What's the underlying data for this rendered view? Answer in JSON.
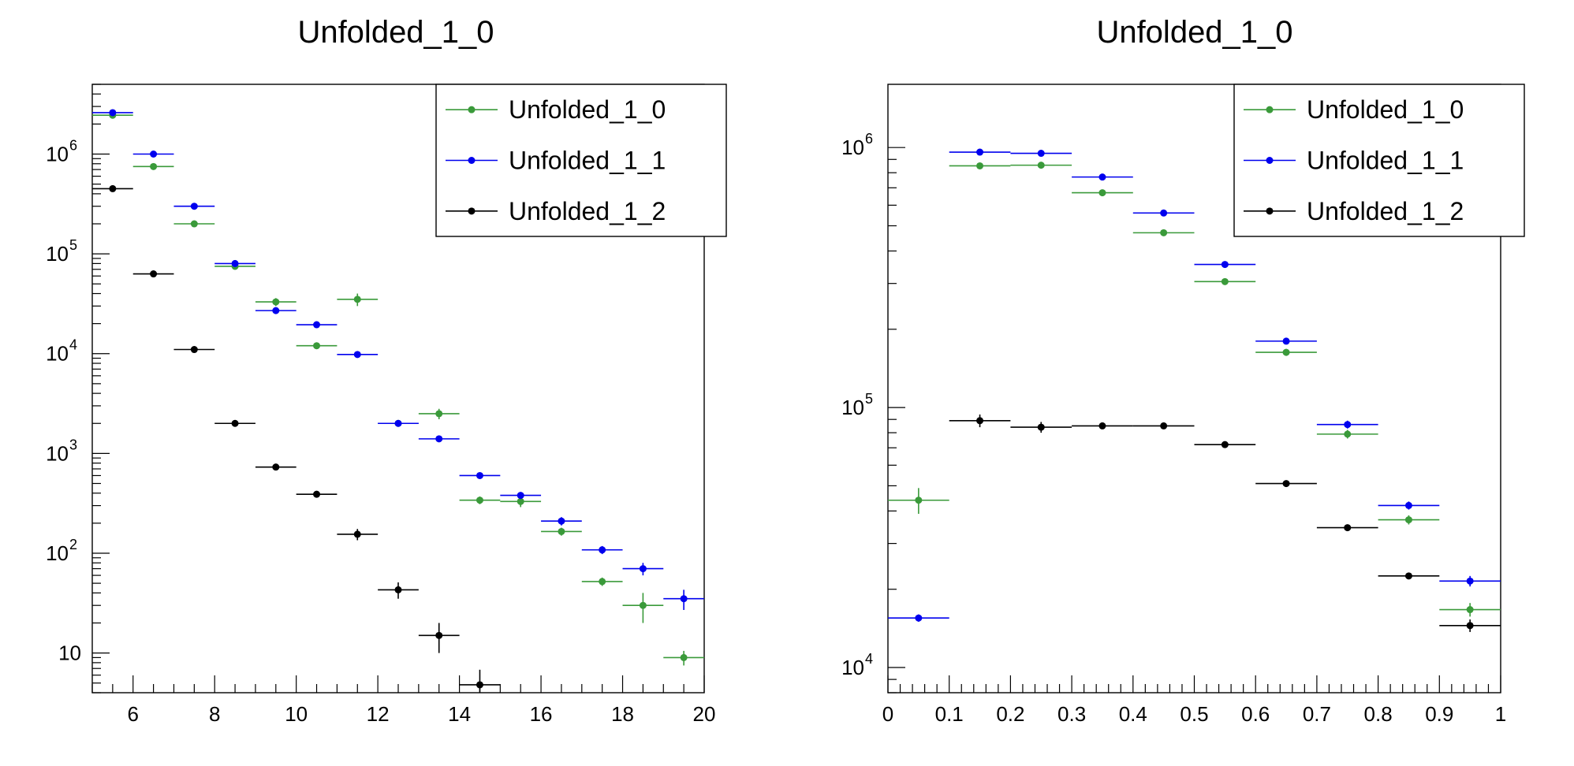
{
  "chart_data": [
    {
      "type": "scatter",
      "title": "Unfolded_1_0",
      "xlabel": "",
      "ylabel": "",
      "xlim": [
        5,
        20
      ],
      "ylim": [
        4,
        5000000
      ],
      "y_scale": "log",
      "grid": false,
      "legend_position": "top-right",
      "x_tick_labels": [
        "6",
        "8",
        "10",
        "12",
        "14",
        "16",
        "18",
        "20"
      ],
      "y_tick_labels": [
        "10",
        "10^2",
        "10^3",
        "10^4",
        "10^5",
        "10^6"
      ],
      "x": [
        5.5,
        6.5,
        7.5,
        8.5,
        9.5,
        10.5,
        11.5,
        12.5,
        13.5,
        14.5,
        15.5,
        16.5,
        17.5,
        18.5,
        19.5
      ],
      "x_bin_width": 1,
      "series": [
        {
          "name": "Unfolded_1_0",
          "color": "#3a9a3a",
          "values": [
            2450000,
            750000,
            200000,
            75000,
            33000,
            12000,
            35000,
            2000,
            2500,
            340,
            330,
            165,
            52,
            30,
            9
          ],
          "errors": [
            150000,
            40000,
            10000,
            4000,
            3000,
            800,
            5000,
            100,
            300,
            30,
            40,
            15,
            5,
            10,
            1.5
          ]
        },
        {
          "name": "Unfolded_1_1",
          "color": "#0000ee",
          "values": [
            2600000,
            1000000,
            300000,
            80000,
            27000,
            19500,
            9800,
            2000,
            1400,
            600,
            380,
            210,
            108,
            70,
            35
          ],
          "errors": [
            120000,
            40000,
            12000,
            3000,
            1500,
            900,
            500,
            100,
            80,
            40,
            30,
            20,
            10,
            10,
            8
          ]
        },
        {
          "name": "Unfolded_1_2",
          "color": "#000000",
          "values": [
            450000,
            63000,
            11000,
            2000,
            730,
            390,
            155,
            43,
            15,
            4.8,
            null,
            null,
            null,
            null,
            null
          ],
          "errors": [
            15000,
            3000,
            500,
            100,
            40,
            30,
            20,
            8,
            5,
            2,
            null,
            null,
            null,
            null,
            null
          ]
        }
      ]
    },
    {
      "type": "scatter",
      "title": "Unfolded_1_0",
      "xlabel": "",
      "ylabel": "",
      "xlim": [
        0,
        1
      ],
      "ylim": [
        8000,
        1750000
      ],
      "y_scale": "log",
      "grid": false,
      "legend_position": "top-right",
      "x_tick_labels": [
        "0",
        "0.1",
        "0.2",
        "0.3",
        "0.4",
        "0.5",
        "0.6",
        "0.7",
        "0.8",
        "0.9",
        "1"
      ],
      "y_tick_labels": [
        "10^4",
        "10^5",
        "10^6"
      ],
      "x": [
        0.05,
        0.15,
        0.25,
        0.35,
        0.45,
        0.55,
        0.65,
        0.75,
        0.85,
        0.95
      ],
      "x_bin_width": 0.1,
      "series": [
        {
          "name": "Unfolded_1_0",
          "color": "#3a9a3a",
          "values": [
            44000,
            850000,
            855000,
            670000,
            470000,
            305000,
            163000,
            79000,
            37000,
            16700
          ],
          "errors": [
            5000,
            15000,
            15000,
            12000,
            10000,
            8000,
            5000,
            3000,
            1500,
            1000
          ]
        },
        {
          "name": "Unfolded_1_1",
          "color": "#0000ee",
          "values": [
            15500,
            960000,
            950000,
            770000,
            560000,
            355000,
            180000,
            86000,
            42000,
            21500
          ],
          "errors": [
            500,
            15000,
            15000,
            12000,
            10000,
            8000,
            5000,
            3000,
            1500,
            1000
          ]
        },
        {
          "name": "Unfolded_1_2",
          "color": "#000000",
          "values": [
            null,
            89000,
            84000,
            85000,
            85000,
            72000,
            51000,
            34500,
            22500,
            14500
          ],
          "errors": [
            null,
            5000,
            4000,
            1500,
            1500,
            1500,
            1000,
            700,
            500,
            800
          ]
        }
      ]
    }
  ]
}
